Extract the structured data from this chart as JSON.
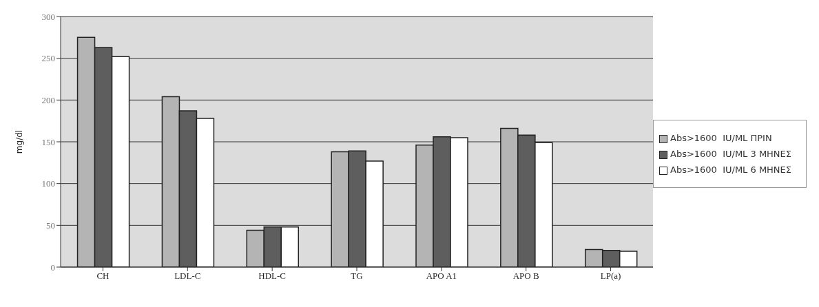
{
  "chart_data": {
    "type": "bar",
    "ylabel": "mg/dl",
    "categories": [
      "CH",
      "LDL-C",
      "HDL-C",
      "TG",
      "APO A1",
      "APO B",
      "LP(a)"
    ],
    "series": [
      {
        "name": "Abs>1600  IU/ML ΠΡΙΝ",
        "color": "#b4b4b4",
        "values": [
          275,
          204,
          44,
          138,
          146,
          166,
          21
        ]
      },
      {
        "name": "Abs>1600  IU/ML 3 ΜΗΝΕΣ",
        "color": "#5e5e5e",
        "values": [
          263,
          187,
          48,
          139,
          156,
          158,
          20
        ]
      },
      {
        "name": "Abs>1600  IU/ML 6 ΜΗΝΕΣ",
        "color": "#ffffff",
        "values": [
          252,
          178,
          48,
          127,
          155,
          149,
          19
        ]
      }
    ],
    "ylim": [
      0,
      300
    ],
    "yticks": [
      0,
      50,
      100,
      150,
      200,
      250,
      300
    ],
    "grid": "y",
    "legend": "right"
  }
}
